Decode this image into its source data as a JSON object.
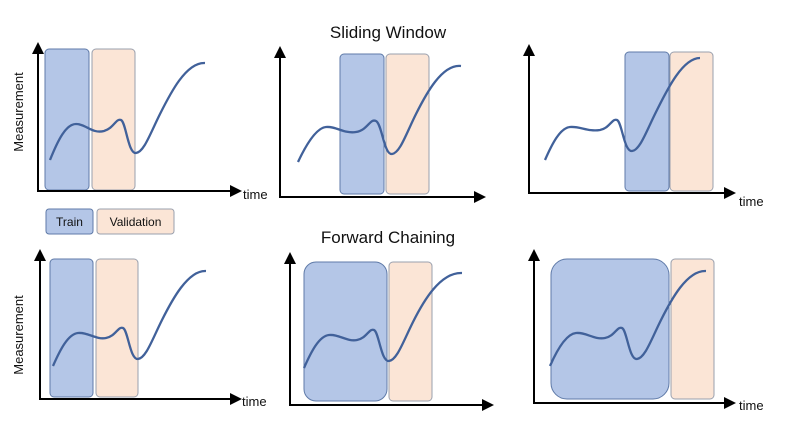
{
  "titles": {
    "sliding": "Sliding Window",
    "forward": "Forward Chaining"
  },
  "axis": {
    "y_label": "Measurement",
    "x_label": "time"
  },
  "legend": {
    "train": "Train",
    "validation": "Validation"
  },
  "colors": {
    "train_fill": "#b4c6e7",
    "train_stroke": "#5f7aa8",
    "validation_fill": "#fbe5d6",
    "validation_stroke": "#9aa0ae",
    "curve": "#41619a",
    "axis": "#000000"
  }
}
